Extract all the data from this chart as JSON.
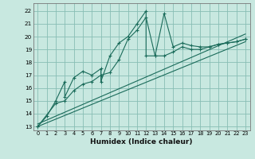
{
  "title": "",
  "xlabel": "Humidex (Indice chaleur)",
  "xlim": [
    -0.5,
    23.5
  ],
  "ylim": [
    12.7,
    22.6
  ],
  "yticks": [
    13,
    14,
    15,
    16,
    17,
    18,
    19,
    20,
    21,
    22
  ],
  "xticks": [
    0,
    1,
    2,
    3,
    4,
    5,
    6,
    7,
    8,
    9,
    10,
    11,
    12,
    13,
    14,
    15,
    16,
    17,
    18,
    19,
    20,
    21,
    22,
    23
  ],
  "bg_color": "#c8e8e0",
  "grid_color": "#88bdb4",
  "line_color": "#1a6b5a",
  "line1_x": [
    0,
    1,
    2,
    3,
    3,
    4,
    5,
    6,
    7,
    7,
    8,
    9,
    10,
    11,
    12,
    12,
    13,
    14,
    15,
    16,
    17,
    18,
    19,
    20,
    21,
    22,
    23
  ],
  "line1_y": [
    13.0,
    13.8,
    15.0,
    16.5,
    15.3,
    16.8,
    17.3,
    17.0,
    17.5,
    16.5,
    18.5,
    19.5,
    20.0,
    21.0,
    22.0,
    18.5,
    18.5,
    21.8,
    19.2,
    19.5,
    19.3,
    19.2,
    19.2,
    19.4,
    19.5,
    19.6,
    19.8
  ],
  "line2_x": [
    0,
    2,
    3,
    4,
    5,
    6,
    7,
    8,
    9,
    10,
    11,
    12,
    13,
    14,
    15,
    16,
    17,
    18,
    19,
    20,
    21,
    22,
    23
  ],
  "line2_y": [
    13.0,
    14.8,
    15.0,
    15.8,
    16.3,
    16.5,
    17.0,
    17.2,
    18.2,
    19.8,
    20.5,
    21.5,
    18.5,
    18.5,
    18.8,
    19.2,
    19.0,
    19.0,
    19.2,
    19.4,
    19.5,
    19.6,
    19.8
  ],
  "line3_x": [
    0,
    23
  ],
  "line3_y": [
    13.0,
    19.6
  ],
  "line4_x": [
    0,
    23
  ],
  "line4_y": [
    13.2,
    20.2
  ],
  "marker": "+"
}
